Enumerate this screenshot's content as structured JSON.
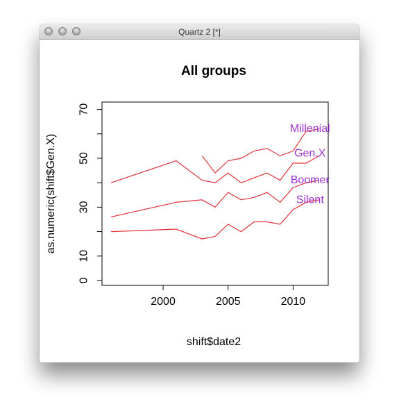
{
  "window": {
    "title": "Quartz 2 [*]"
  },
  "chart_data": {
    "type": "line",
    "title": "All groups",
    "xlabel": "shift$date2",
    "ylabel": "as.numeric(shift$Gen.X)",
    "xlim": [
      1995.3,
      2012.7
    ],
    "ylim": [
      -2,
      73
    ],
    "xticks": [
      2000,
      2005,
      2010
    ],
    "yticks": [
      0,
      10,
      30,
      50,
      70
    ],
    "yticks_unlabeled": [
      20,
      40,
      60
    ],
    "line_color": "#e0303a",
    "label_color": "#9b30d0",
    "series": [
      {
        "name": "Silent",
        "x": [
          1996,
          2001,
          2003,
          2004,
          2005,
          2006,
          2007,
          2008,
          2009,
          2010,
          2011,
          2012
        ],
        "y": [
          20,
          21,
          17,
          18,
          23,
          20,
          24,
          24,
          23,
          29,
          32,
          33
        ]
      },
      {
        "name": "Boomer",
        "x": [
          1996,
          2001,
          2003,
          2004,
          2005,
          2006,
          2007,
          2008,
          2009,
          2010,
          2011,
          2012
        ],
        "y": [
          26,
          32,
          33,
          30,
          36,
          33,
          34,
          36,
          32,
          38,
          40,
          41
        ]
      },
      {
        "name": "Gen.X",
        "x": [
          1996,
          2001,
          2003,
          2004,
          2005,
          2006,
          2007,
          2008,
          2009,
          2010,
          2011,
          2012
        ],
        "y": [
          40,
          49,
          41,
          40,
          44,
          40,
          42,
          44,
          41,
          48,
          48,
          51
        ]
      },
      {
        "name": "Millenial",
        "x": [
          2003,
          2004,
          2005,
          2006,
          2007,
          2008,
          2009,
          2010,
          2011,
          2012
        ],
        "y": [
          51,
          44,
          49,
          50,
          53,
          54,
          51,
          53,
          61,
          62
        ]
      }
    ],
    "labels": [
      {
        "text": "Millenial",
        "x": 2011.3,
        "y": 62
      },
      {
        "text": "Gen.X",
        "x": 2011.3,
        "y": 52
      },
      {
        "text": "Boomer",
        "x": 2011.3,
        "y": 41
      },
      {
        "text": "Silent",
        "x": 2011.3,
        "y": 33
      }
    ],
    "grid": false
  }
}
